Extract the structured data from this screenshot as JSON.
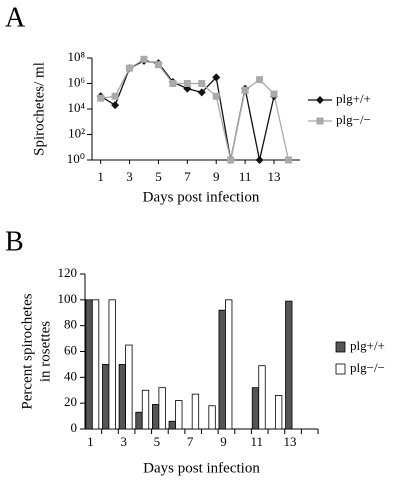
{
  "chart_data": [
    {
      "type": "line",
      "label": "A",
      "y_label": "Spirochetes/ ml",
      "x_label": "Days post infection",
      "log_scale": true,
      "x": [
        1,
        2,
        3,
        4,
        5,
        6,
        7,
        8,
        9,
        10,
        11,
        12,
        13,
        14
      ],
      "xlim": [
        0.4,
        14.8
      ],
      "xticks": [
        1,
        3,
        5,
        7,
        9,
        11,
        13
      ],
      "ylim": [
        1,
        100000000
      ],
      "yticks": [
        {
          "value": 1,
          "label": "10⁰"
        },
        {
          "value": 100,
          "label": "10²"
        },
        {
          "value": 10000,
          "label": "10⁴"
        },
        {
          "value": 1000000,
          "label": "10⁶"
        },
        {
          "value": 100000000,
          "label": "10⁸"
        }
      ],
      "series": [
        {
          "name": "plg+/+",
          "color": "#111111",
          "marker": "diamond",
          "values": [
            100000,
            20000,
            16000000,
            60000000,
            40000000,
            1300000,
            400000,
            200000,
            3000000,
            1,
            400000,
            1,
            100000,
            null
          ]
        },
        {
          "name": "plg−/−",
          "color": "#aaaaaa",
          "marker": "square",
          "values": [
            70000,
            100000,
            16000000,
            80000000,
            30000000,
            1000000,
            1000000,
            1000000,
            100000,
            1,
            300000,
            2000000,
            150000,
            1
          ]
        }
      ]
    },
    {
      "type": "bar",
      "label": "B",
      "y_label": [
        "Percent spirochetes",
        "in rosettes"
      ],
      "x_label": "Days post infection",
      "categories": [
        "1",
        null,
        "3",
        null,
        "5",
        null,
        "7",
        null,
        "9",
        null,
        "11",
        null,
        "13",
        null
      ],
      "ylim": [
        0,
        120
      ],
      "yticks": [
        0,
        20,
        40,
        60,
        80,
        100,
        120
      ],
      "series": [
        {
          "name": "plg+/+",
          "color": "#555555",
          "values": [
            100,
            50,
            50,
            13,
            19,
            6,
            null,
            null,
            92,
            null,
            32,
            null,
            99,
            null
          ]
        },
        {
          "name": "plg−/−",
          "color": "#ffffff",
          "values": [
            100,
            100,
            65,
            30,
            32,
            22,
            27,
            18,
            100,
            null,
            49,
            26,
            null,
            null
          ]
        }
      ]
    }
  ]
}
